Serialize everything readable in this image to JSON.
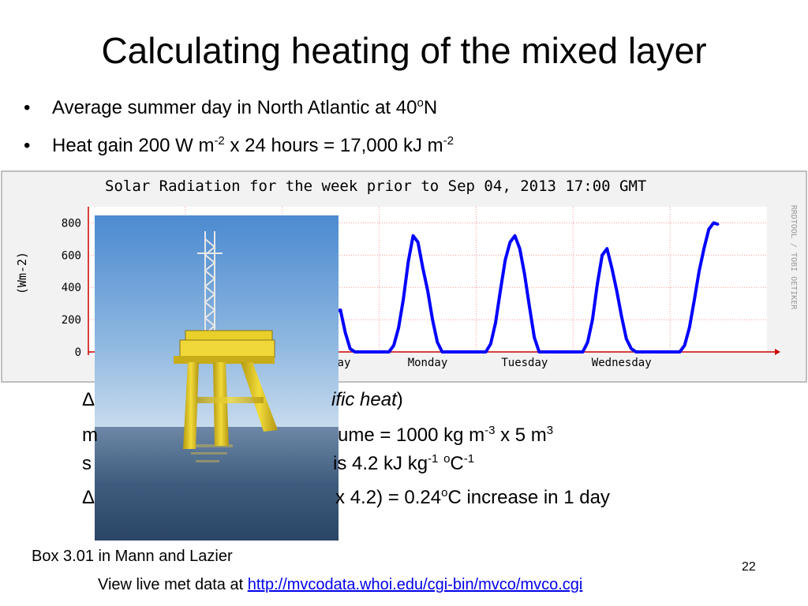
{
  "slide": {
    "title": "Calculating heating of the mixed layer",
    "bullets": [
      {
        "pre": "Average summer day in North Atlantic at 40",
        "sup": "o",
        "post": "N"
      },
      {
        "pre": "Heat gain 200 W m",
        "sup": "-2",
        "mid": " x 24 hours = 17,000 kJ m",
        "sup2": "-2"
      }
    ],
    "calc_lines": [
      {
        "a": "Δ",
        "b": "ific heat",
        "c": ")"
      },
      {
        "a": "m",
        "b": "ume = 1000 kg m",
        "s1": "-3",
        "c": " x 5 m",
        "s2": "3"
      },
      {
        "a": "s",
        "b": "is 4.2 kJ kg",
        "s1": "-1",
        "mid": " ",
        "s2": "o",
        "c": "C",
        "s3": "-1"
      },
      {
        "a": "Δ",
        "b": "x 4.2) = 0.24",
        "s1": "o",
        "c": "C increase in 1 day"
      }
    ],
    "caption": "Box 3.01 in Mann and Lazier",
    "page_number": "22",
    "footer_prefix": "View live met data at ",
    "footer_link": "http://mvcodata.whoi.edu/cgi-bin/mvco/mvco.cgi",
    "photo_icon": "offshore-tower-photo"
  },
  "chart_data": {
    "type": "line",
    "title": "Solar Radiation for the week prior to Sep 04, 2013 17:00 GMT",
    "ylabel": "(Wm-2)",
    "side_label": "RRDTOOL / TOBI OETIKER",
    "ylim": [
      0,
      900
    ],
    "yticks": [
      0,
      200,
      400,
      600,
      800
    ],
    "xlim": [
      0,
      7
    ],
    "visible_x_labels": [
      {
        "label": "ay",
        "x": 1.5
      },
      {
        "label": "Sunday",
        "x": 2.5
      },
      {
        "label": "Monday",
        "x": 3.5
      },
      {
        "label": "Tuesday",
        "x": 4.5
      },
      {
        "label": "Wednesday",
        "x": 5.5
      }
    ],
    "grid": true,
    "colors": {
      "line": "#0000ff",
      "grid": "#ff9999",
      "plot_bg": "#ffffff",
      "frame_bg": "#f2f2f2",
      "border": "#bfbfbf",
      "axis": "#cc0000"
    },
    "series": [
      {
        "values": [
          [
            2.0,
            0
          ],
          [
            2.05,
            60
          ],
          [
            2.1,
            160
          ],
          [
            2.15,
            300
          ],
          [
            2.2,
            470
          ],
          [
            2.25,
            530
          ],
          [
            2.3,
            540
          ],
          [
            2.35,
            380
          ],
          [
            2.4,
            240
          ],
          [
            2.45,
            250
          ],
          [
            2.5,
            200
          ],
          [
            2.55,
            250
          ],
          [
            2.6,
            260
          ],
          [
            2.65,
            120
          ],
          [
            2.7,
            20
          ],
          [
            2.75,
            0
          ],
          [
            3.1,
            0
          ],
          [
            3.15,
            40
          ],
          [
            3.2,
            150
          ],
          [
            3.25,
            330
          ],
          [
            3.3,
            560
          ],
          [
            3.35,
            720
          ],
          [
            3.4,
            680
          ],
          [
            3.45,
            520
          ],
          [
            3.5,
            380
          ],
          [
            3.55,
            200
          ],
          [
            3.6,
            60
          ],
          [
            3.65,
            0
          ],
          [
            4.1,
            0
          ],
          [
            4.15,
            50
          ],
          [
            4.2,
            180
          ],
          [
            4.25,
            380
          ],
          [
            4.3,
            570
          ],
          [
            4.35,
            680
          ],
          [
            4.4,
            720
          ],
          [
            4.45,
            640
          ],
          [
            4.5,
            480
          ],
          [
            4.55,
            280
          ],
          [
            4.6,
            90
          ],
          [
            4.65,
            0
          ],
          [
            5.1,
            0
          ],
          [
            5.15,
            60
          ],
          [
            5.2,
            200
          ],
          [
            5.25,
            420
          ],
          [
            5.3,
            600
          ],
          [
            5.35,
            640
          ],
          [
            5.4,
            520
          ],
          [
            5.45,
            380
          ],
          [
            5.5,
            220
          ],
          [
            5.55,
            80
          ],
          [
            5.6,
            20
          ],
          [
            5.65,
            0
          ],
          [
            6.1,
            0
          ],
          [
            6.15,
            40
          ],
          [
            6.2,
            150
          ],
          [
            6.25,
            320
          ],
          [
            6.3,
            500
          ],
          [
            6.35,
            640
          ],
          [
            6.4,
            760
          ],
          [
            6.45,
            800
          ],
          [
            6.5,
            790
          ]
        ]
      }
    ]
  }
}
